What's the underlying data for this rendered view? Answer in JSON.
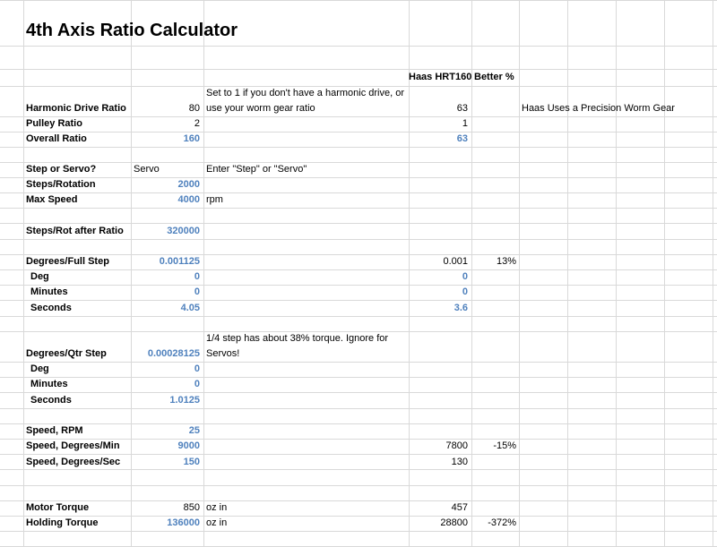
{
  "sheet": {
    "title": "4th Axis Ratio Calculator",
    "headers": {
      "haas": "Haas HRT160",
      "better": "Better %"
    },
    "rows": {
      "harmonic": {
        "label": "Harmonic Drive Ratio",
        "value": "80",
        "note": "Set to 1 if you don't have a harmonic drive, or use your worm gear ratio",
        "haas": "63",
        "extra": "Haas Uses a Precision Worm Gear"
      },
      "pulley": {
        "label": "Pulley Ratio",
        "value": "2",
        "haas": "1"
      },
      "overall": {
        "label": "Overall Ratio",
        "value": "160",
        "haas": "63"
      },
      "steporservo": {
        "label": "Step or Servo?",
        "value": "Servo",
        "note": "Enter \"Step\" or \"Servo\""
      },
      "steps": {
        "label": "Steps/Rotation",
        "value": "2000"
      },
      "maxspeed": {
        "label": "Max Speed",
        "value": "4000",
        "unit": "rpm"
      },
      "stepsafter": {
        "label": "Steps/Rot after Ratio",
        "value": "320000"
      },
      "degfull": {
        "label": "Degrees/Full Step",
        "value": "0.001125",
        "haas": "0.001",
        "better": "13%"
      },
      "deg1": {
        "label": "Deg",
        "value": "0",
        "haas": "0"
      },
      "min1": {
        "label": "Minutes",
        "value": "0",
        "haas": "0"
      },
      "sec1": {
        "label": "Seconds",
        "value": "4.05",
        "haas": "3.6"
      },
      "degqtr": {
        "label": "Degrees/Qtr Step",
        "value": "0.00028125",
        "note": "1/4 step has about 38% torque.  Ignore for Servos!"
      },
      "deg2": {
        "label": "Deg",
        "value": "0"
      },
      "min2": {
        "label": "Minutes",
        "value": "0"
      },
      "sec2": {
        "label": "Seconds",
        "value": "1.0125"
      },
      "rpm": {
        "label": "Speed, RPM",
        "value": "25"
      },
      "degmin": {
        "label": "Speed, Degrees/Min",
        "value": "9000",
        "haas": "7800",
        "better": "-15%"
      },
      "degsec": {
        "label": "Speed, Degrees/Sec",
        "value": "150",
        "haas": "130"
      },
      "motortorque": {
        "label": "Motor Torque",
        "value": "850",
        "unit": "oz in",
        "haas": "457"
      },
      "holdtorque": {
        "label": "Holding Torque",
        "value": "136000",
        "unit": "oz in",
        "haas": "28800",
        "better": "-372%"
      }
    }
  }
}
